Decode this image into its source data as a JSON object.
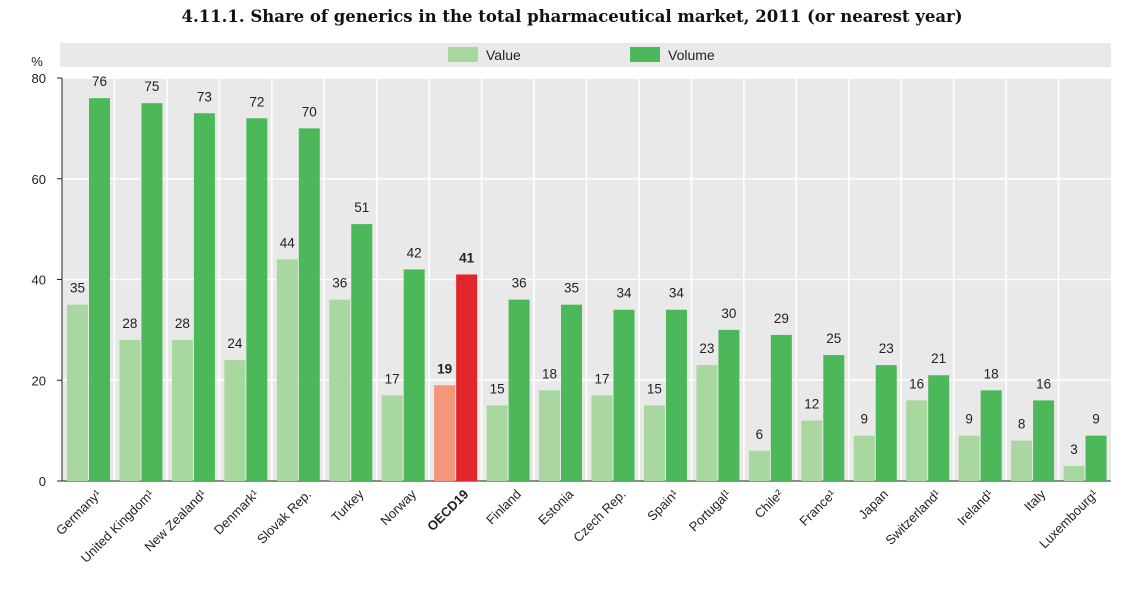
{
  "chart_data": {
    "type": "bar",
    "title": "4.11.1. Share of generics in the total pharmaceutical market, 2011 (or nearest year)",
    "ylabel": "%",
    "xlabel": "",
    "ylim": [
      0,
      80
    ],
    "yticks": [
      0,
      20,
      40,
      60,
      80
    ],
    "grid": true,
    "legend_position": "top",
    "categories": [
      "Germany¹",
      "United Kingdom¹",
      "New Zealand¹",
      "Denmark¹",
      "Slovak Rep.",
      "Turkey",
      "Norway",
      "OECD19",
      "Finland",
      "Estonia",
      "Czech Rep.",
      "Spain¹",
      "Portugal¹",
      "Chile²",
      "France¹",
      "Japan",
      "Switzerland¹",
      "Ireland¹",
      "Italy",
      "Luxembourg¹"
    ],
    "highlight_category": "OECD19",
    "series": [
      {
        "name": "Value",
        "values": [
          35,
          28,
          28,
          24,
          44,
          36,
          17,
          19,
          15,
          18,
          17,
          15,
          23,
          6,
          12,
          9,
          16,
          9,
          8,
          3
        ]
      },
      {
        "name": "Volume",
        "values": [
          76,
          75,
          73,
          72,
          70,
          51,
          42,
          41,
          36,
          35,
          34,
          34,
          30,
          29,
          25,
          23,
          21,
          18,
          16,
          9
        ]
      }
    ],
    "colors": {
      "value": "#a8d8a0",
      "volume": "#4cb85a",
      "value_highlight": "#f4967a",
      "volume_highlight": "#e0252b",
      "plot_background": "#e9e9e9",
      "grid": "#ffffff",
      "legend_background": "#e9e9e9"
    }
  }
}
